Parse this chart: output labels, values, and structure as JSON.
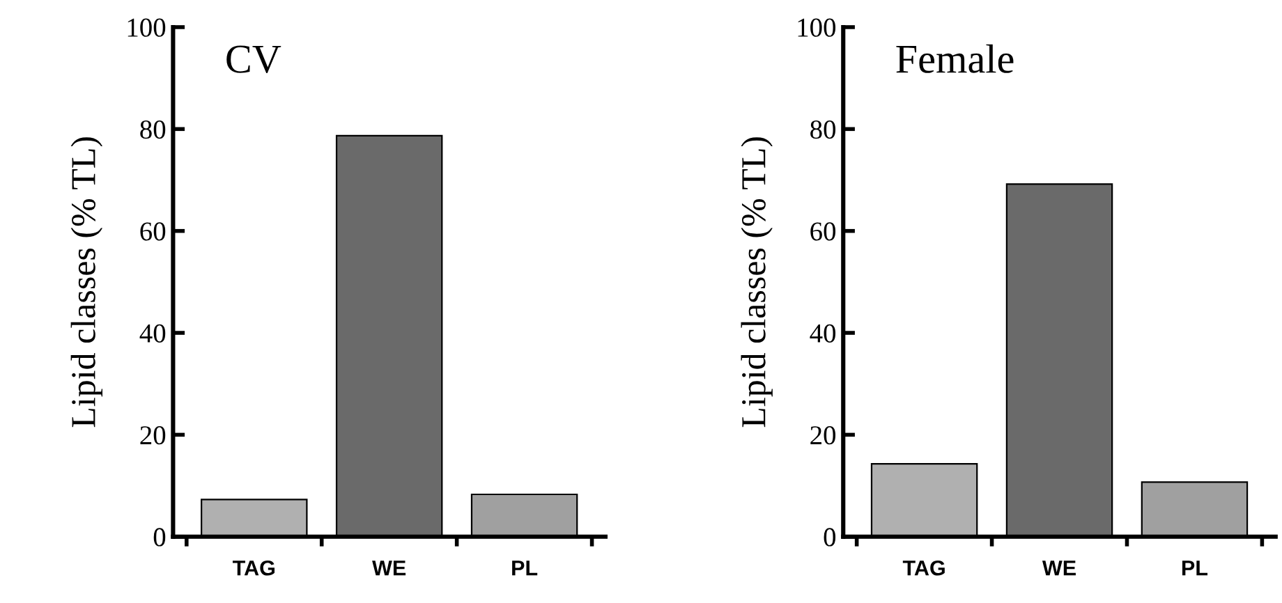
{
  "chart_data": [
    {
      "type": "bar",
      "title": "CV",
      "ylabel": "Lipid classes (% TL)",
      "categories": [
        "TAG",
        "WE",
        "PL"
      ],
      "values": [
        7.3,
        78.7,
        8.3
      ],
      "colors": [
        "#b0b0b0",
        "#6a6a6a",
        "#a0a0a0"
      ],
      "ylim": [
        0,
        100
      ],
      "yticks": [
        0,
        20,
        40,
        60,
        80,
        100
      ],
      "grid": false,
      "legend": false
    },
    {
      "type": "bar",
      "title": "Female",
      "ylabel": "Lipid classes (% TL)",
      "categories": [
        "TAG",
        "WE",
        "PL"
      ],
      "values": [
        14.3,
        69.2,
        10.7
      ],
      "colors": [
        "#b0b0b0",
        "#6a6a6a",
        "#a0a0a0"
      ],
      "ylim": [
        0,
        100
      ],
      "yticks": [
        0,
        20,
        40,
        60,
        80,
        100
      ],
      "grid": false,
      "legend": false
    }
  ]
}
